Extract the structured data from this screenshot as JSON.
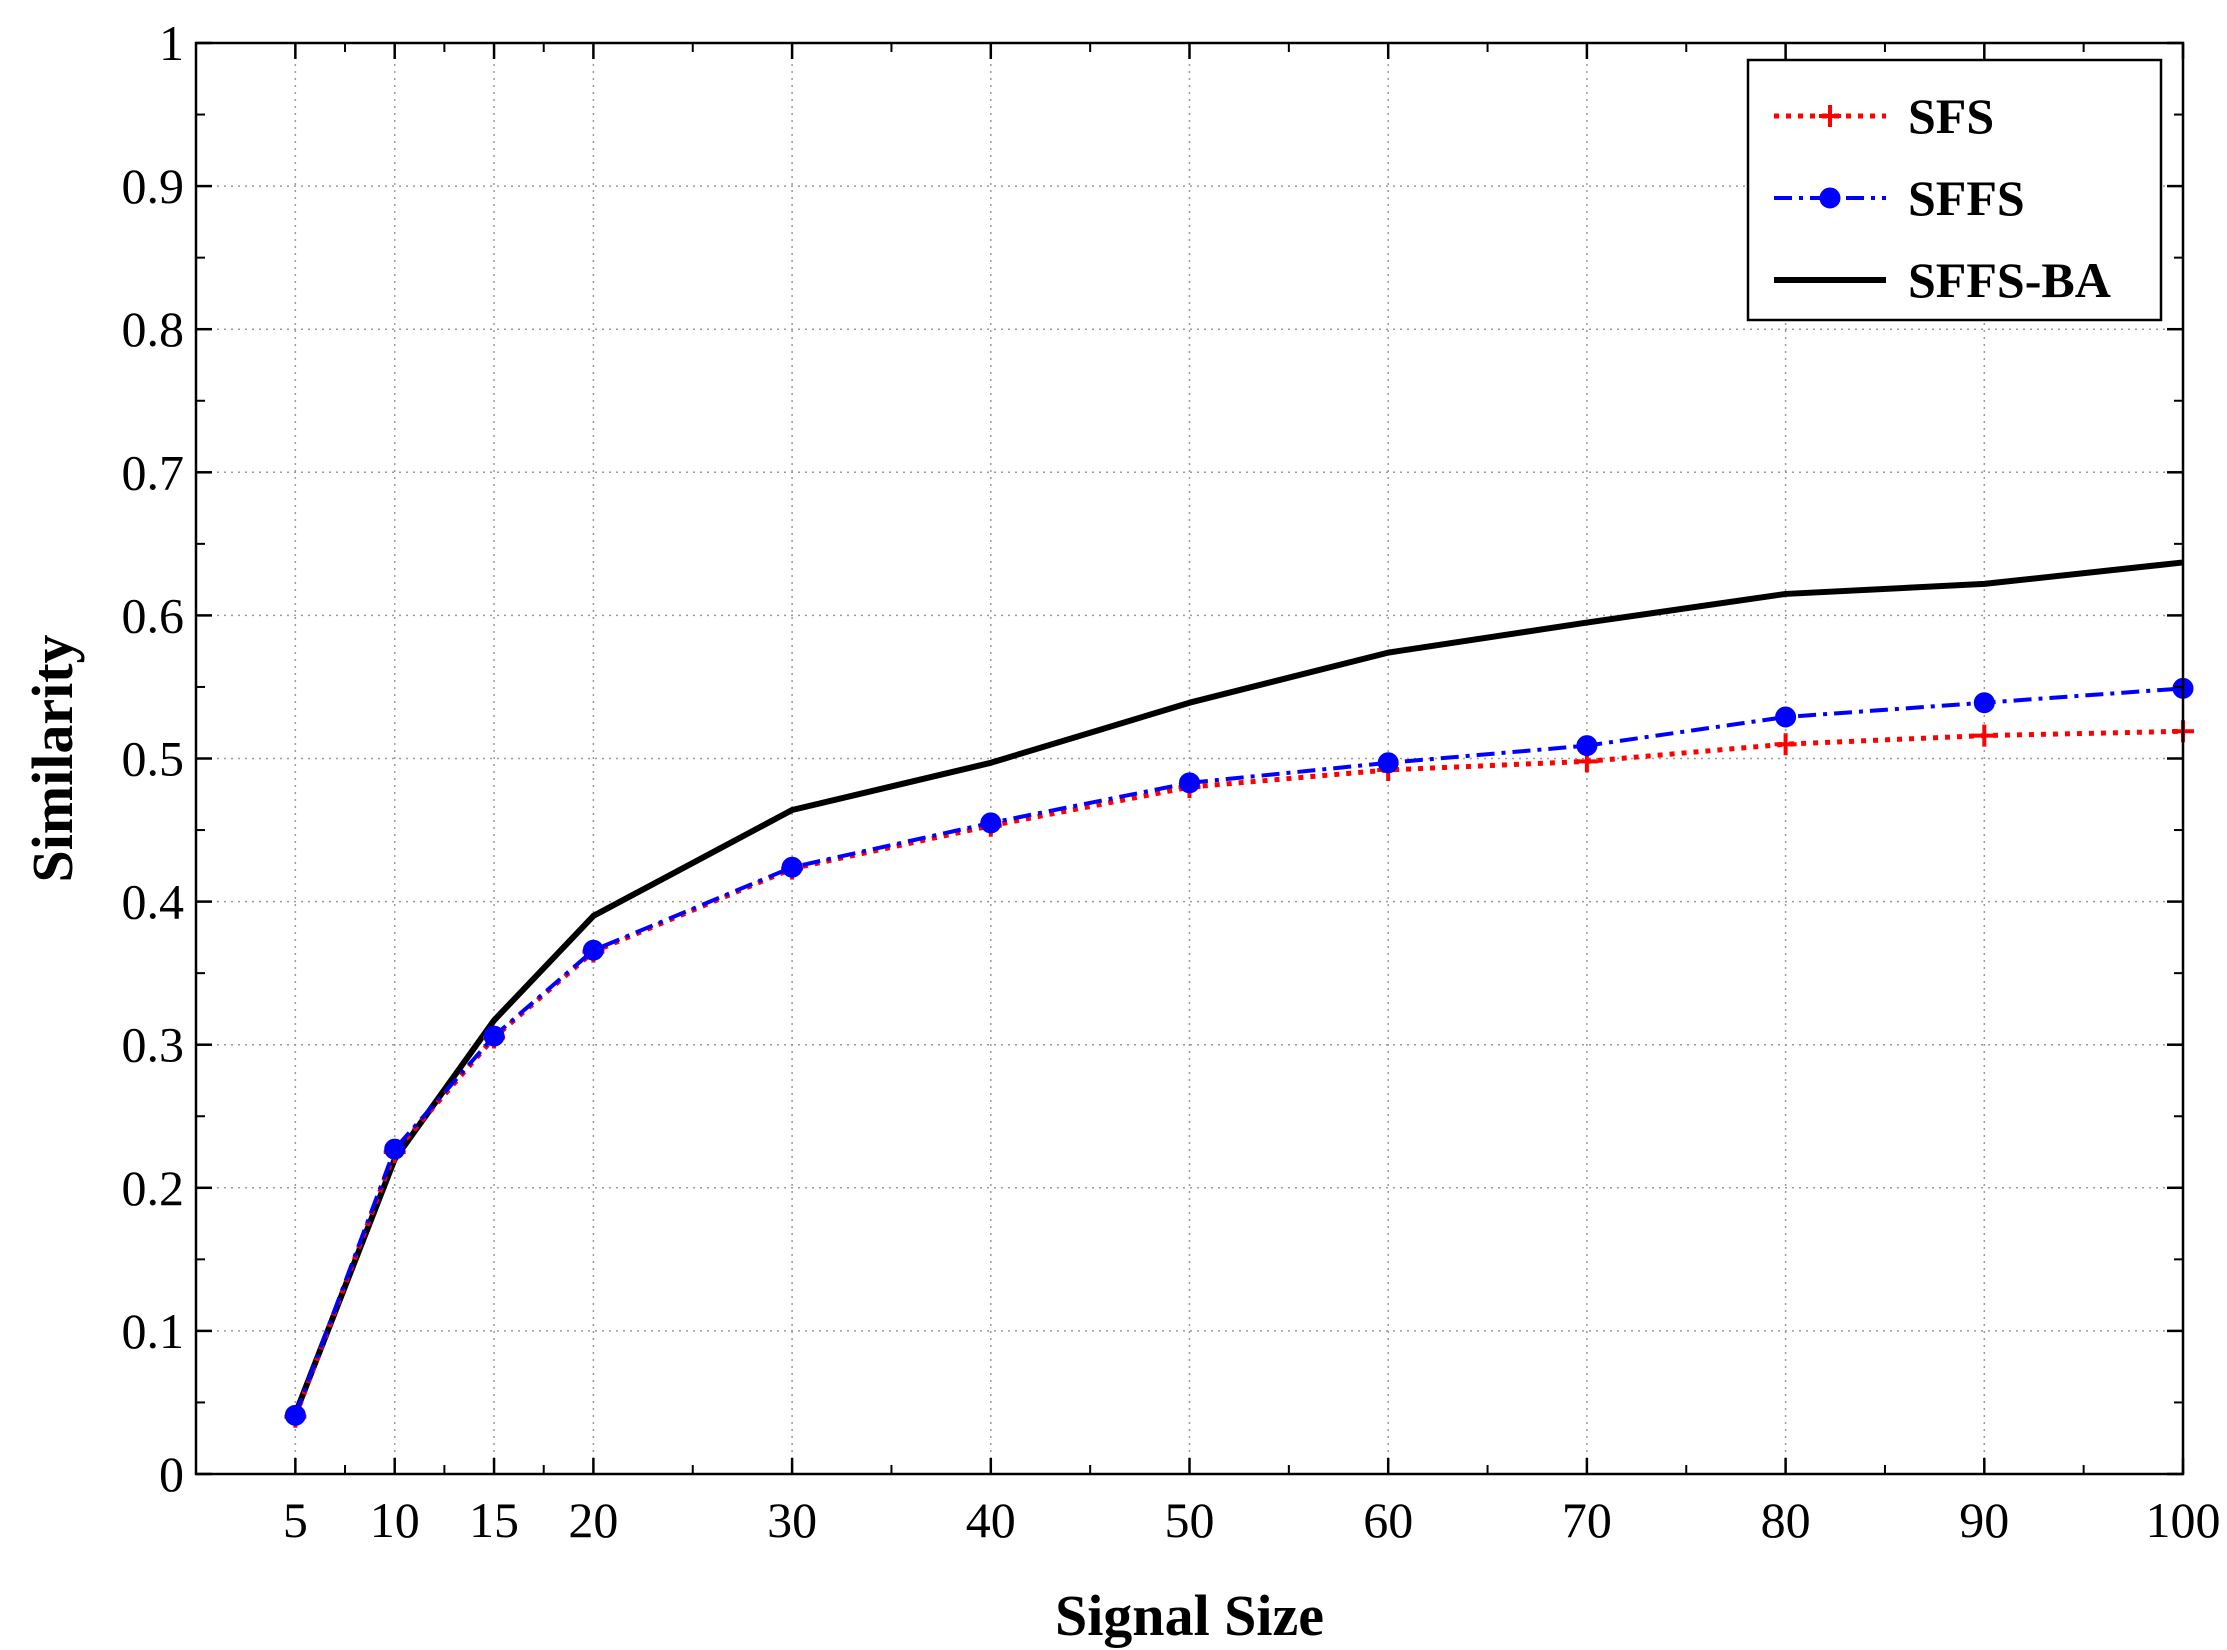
{
  "chart_data": {
    "type": "line",
    "title": "",
    "xlabel": "Signal Size",
    "ylabel": "Similarity",
    "x": [
      5,
      10,
      15,
      20,
      30,
      40,
      50,
      60,
      70,
      80,
      90,
      100
    ],
    "x_tick_labels": [
      "5",
      "10",
      "15",
      "20",
      "30",
      "40",
      "50",
      "60",
      "70",
      "80",
      "90",
      "100"
    ],
    "y_ticks": [
      0,
      0.1,
      0.2,
      0.3,
      0.4,
      0.5,
      0.6,
      0.7,
      0.8,
      0.9,
      1
    ],
    "y_tick_labels": [
      "0",
      "0.1",
      "0.2",
      "0.3",
      "0.4",
      "0.5",
      "0.6",
      "0.7",
      "0.8",
      "0.9",
      "1"
    ],
    "ylim": [
      0,
      1
    ],
    "grid": true,
    "legend_position": "top-right",
    "series": [
      {
        "name": "SFS",
        "color": "#ff0000",
        "style": "dotted",
        "marker": "plus",
        "values": [
          0.04,
          0.225,
          0.305,
          0.365,
          0.423,
          0.453,
          0.48,
          0.492,
          0.498,
          0.51,
          0.516,
          0.519
        ]
      },
      {
        "name": "SFFS",
        "color": "#0000ff",
        "style": "dashdot",
        "marker": "circle",
        "values": [
          0.041,
          0.227,
          0.306,
          0.366,
          0.424,
          0.455,
          0.483,
          0.497,
          0.509,
          0.529,
          0.539,
          0.549
        ]
      },
      {
        "name": "SFFS-BA",
        "color": "#000000",
        "style": "solid",
        "marker": "none",
        "values": [
          0.042,
          0.22,
          0.317,
          0.39,
          0.464,
          0.497,
          0.539,
          0.574,
          0.595,
          0.615,
          0.622,
          0.637
        ]
      }
    ]
  }
}
